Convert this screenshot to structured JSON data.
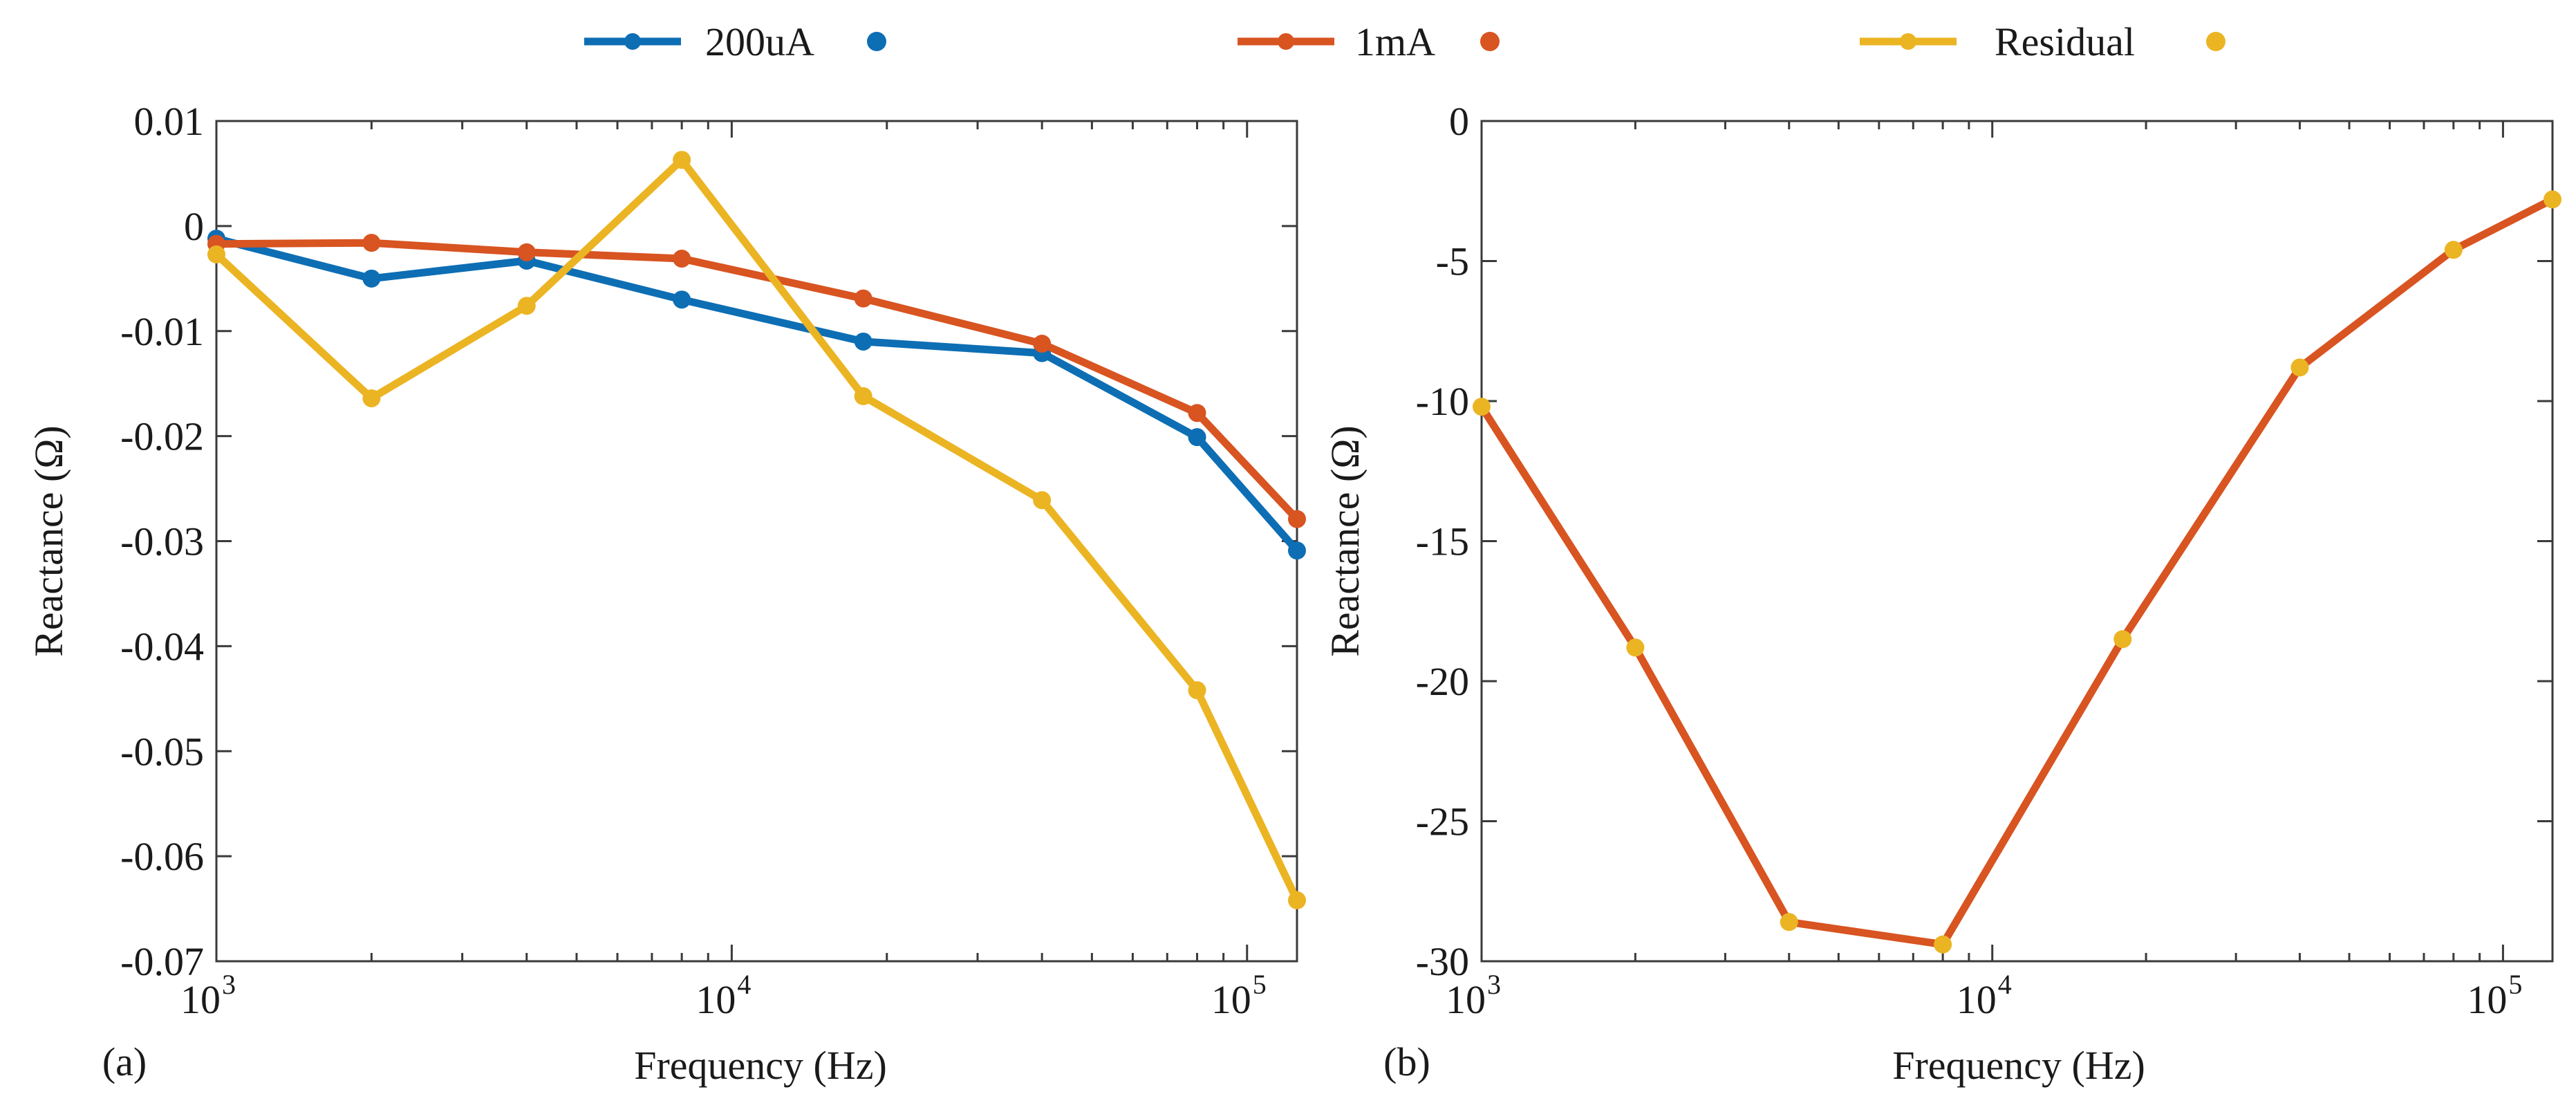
{
  "legend": {
    "placement": "top",
    "entries": [
      {
        "label": "200uA",
        "color": "#0d6eb4"
      },
      {
        "label": "1mA",
        "color": "#d85421"
      },
      {
        "label": "Residual",
        "color": "#ebb423"
      }
    ]
  },
  "chart_data": [
    {
      "type": "line",
      "panel_label": "(a)",
      "xlabel": "Frequency (Hz)",
      "ylabel": "Reactance (Ω)",
      "xscale": "log",
      "xlim": [
        1000,
        125000
      ],
      "ylim": [
        -0.07,
        0.01
      ],
      "grid": false,
      "yticks": [
        0.01,
        0,
        -0.01,
        -0.02,
        -0.03,
        -0.04,
        -0.05,
        -0.06,
        -0.07
      ],
      "ytick_labels": [
        "0.01",
        "0",
        "-0.01",
        "-0.02",
        "-0.03",
        "-0.04",
        "-0.05",
        "-0.06",
        "-0.07"
      ],
      "xticks": [
        {
          "value": 1000,
          "base": "10",
          "exp": "3"
        },
        {
          "value": 10000,
          "base": "10",
          "exp": "4"
        },
        {
          "value": 100000,
          "base": "10",
          "exp": "5"
        }
      ],
      "x": [
        1000,
        2000,
        4000,
        8000,
        18000,
        40000,
        80000,
        125000
      ],
      "series": [
        {
          "name": "200uA",
          "color": "#0d6eb4",
          "values": [
            -0.0012,
            -0.005,
            -0.0033,
            -0.007,
            -0.011,
            -0.0121,
            -0.0201,
            -0.0309
          ]
        },
        {
          "name": "1mA",
          "color": "#d85421",
          "values": [
            -0.0017,
            -0.0016,
            -0.0025,
            -0.0031,
            -0.0069,
            -0.0112,
            -0.0178,
            -0.0279
          ]
        },
        {
          "name": "Residual",
          "color": "#ebb423",
          "values": [
            -0.0027,
            -0.0164,
            -0.0076,
            0.0063,
            -0.0162,
            -0.0261,
            -0.0442,
            -0.0642
          ]
        }
      ]
    },
    {
      "type": "line",
      "panel_label": "(b)",
      "xlabel": "Frequency (Hz)",
      "ylabel": "Reactance (Ω)",
      "xscale": "log",
      "xlim": [
        1000,
        125000
      ],
      "ylim": [
        -30,
        0
      ],
      "grid": false,
      "yticks": [
        0,
        -5,
        -10,
        -15,
        -20,
        -25,
        -30
      ],
      "ytick_labels": [
        "0",
        "-5",
        "-10",
        "-15",
        "-20",
        "-25",
        "-30"
      ],
      "xticks": [
        {
          "value": 1000,
          "base": "10",
          "exp": "3"
        },
        {
          "value": 10000,
          "base": "10",
          "exp": "4"
        },
        {
          "value": 100000,
          "base": "10",
          "exp": "5"
        }
      ],
      "x": [
        1000,
        2000,
        4000,
        8000,
        18000,
        40000,
        80000,
        125000
      ],
      "series": [
        {
          "color": "#d85421",
          "marker_color": "#ebb423",
          "values": [
            -10.2,
            -18.8,
            -28.6,
            -29.4,
            -18.5,
            -8.8,
            -4.6,
            -2.8
          ]
        }
      ]
    }
  ]
}
